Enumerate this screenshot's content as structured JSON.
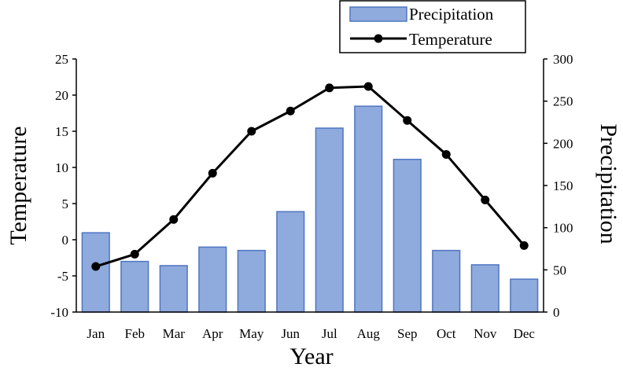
{
  "chart_data": {
    "type": "bar+line",
    "categories": [
      "Jan",
      "Feb",
      "Mar",
      "Apr",
      "May",
      "Jun",
      "Jul",
      "Aug",
      "Sep",
      "Oct",
      "Nov",
      "Dec"
    ],
    "series": [
      {
        "name": "Precipitation",
        "type": "bar",
        "axis": "right",
        "values": [
          94,
          60,
          55,
          77,
          73,
          119,
          218,
          244,
          181,
          73,
          56,
          39
        ],
        "color": "#8faadc",
        "stroke": "#4f76c2"
      },
      {
        "name": "Temperature",
        "type": "line",
        "axis": "left",
        "values": [
          -3.7,
          -2.0,
          2.8,
          9.2,
          15.0,
          17.8,
          21.0,
          21.2,
          16.5,
          11.8,
          5.5,
          -0.8
        ],
        "color": "#000000"
      }
    ],
    "xlabel": "Year",
    "ylabel_left": "Temperature",
    "ylabel_right": "Precipitation",
    "ylim_left": [
      -10,
      25
    ],
    "ylim_right": [
      0,
      300
    ],
    "yticks_left": [
      "-10",
      "-5",
      "0",
      "5",
      "10",
      "15",
      "20",
      "25"
    ],
    "yticks_right": [
      "0",
      "50",
      "100",
      "150",
      "200",
      "250",
      "300"
    ],
    "grid": false,
    "legend_position": "top-right"
  }
}
